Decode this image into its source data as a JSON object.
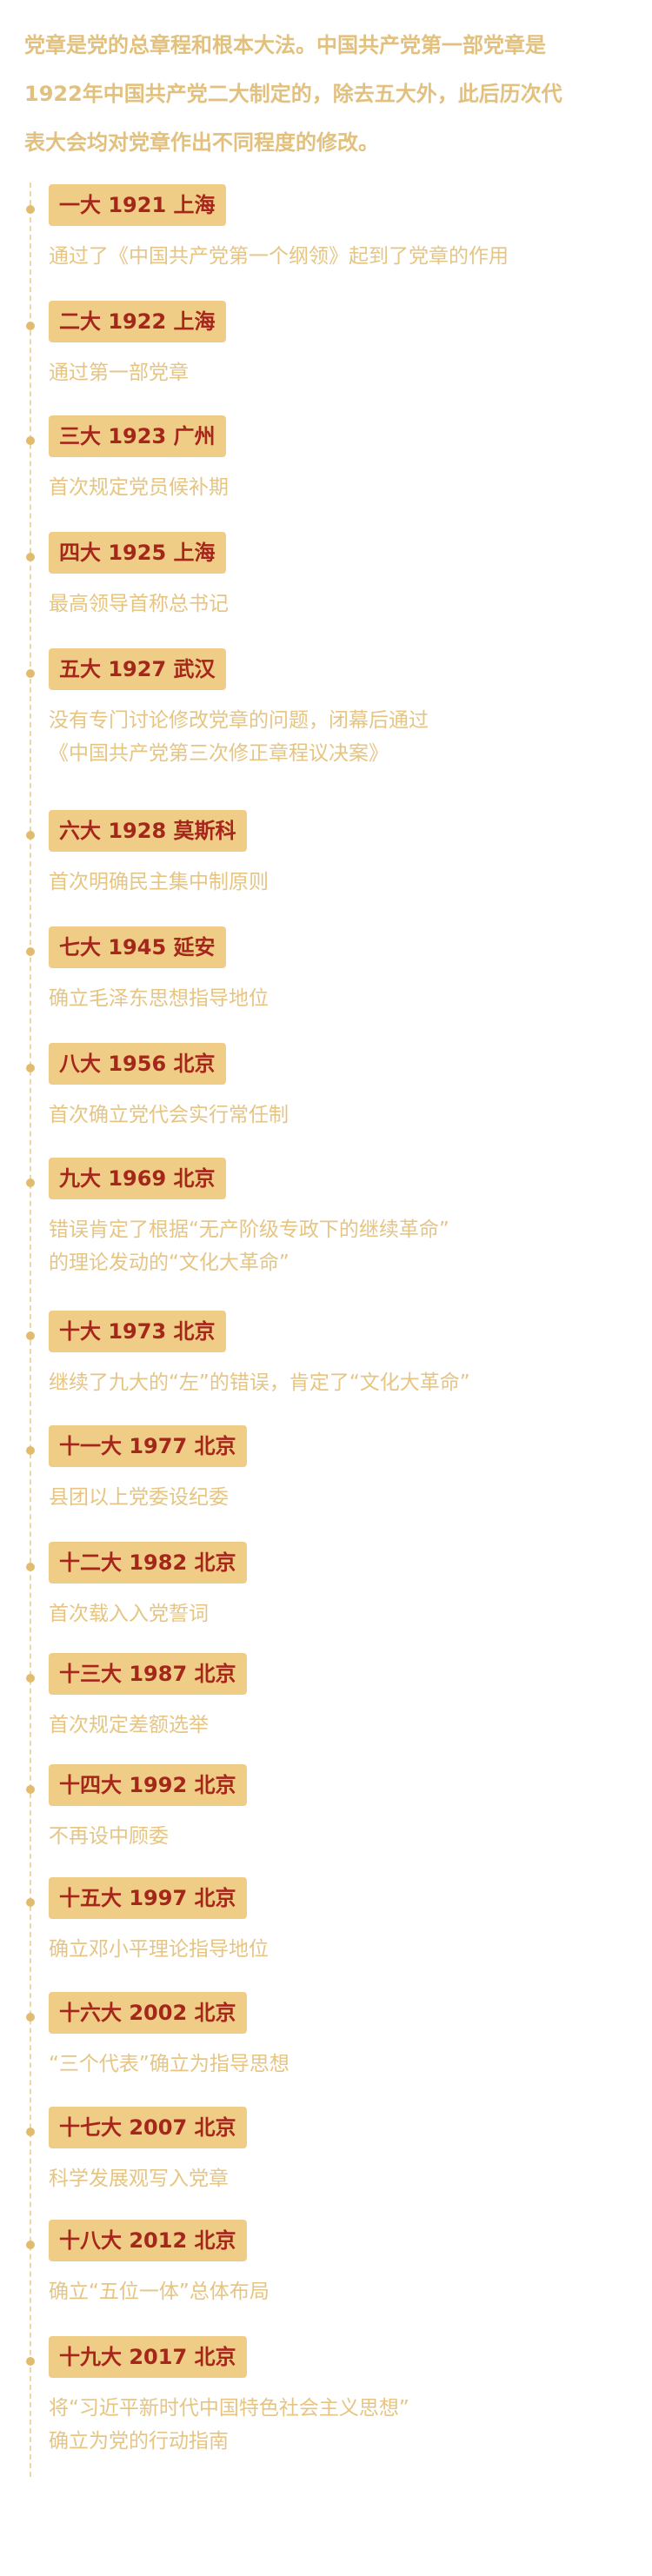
{
  "intro": {
    "line1": "党章是党的总章程和根本大法。中国共产党第一部党章是",
    "line2": "1922年中国共产党二大制定的，除去五大外，此后历次代",
    "line3": "表大会均对党章作出不同程度的修改。"
  },
  "congresses": [
    {
      "tag": "一大 1921 上海",
      "desc": [
        "通过了《中国共产党第一个纲领》起到了党章的作用"
      ]
    },
    {
      "tag": "二大 1922 上海",
      "desc": [
        "通过第一部党章"
      ]
    },
    {
      "tag": "三大 1923 广州",
      "desc": [
        "首次规定党员候补期"
      ]
    },
    {
      "tag": "四大 1925 上海",
      "desc": [
        "最高领导首称总书记"
      ]
    },
    {
      "tag": "五大 1927 武汉",
      "desc": [
        "没有专门讨论修改党章的问题，闭幕后通过",
        "《中国共产党第三次修正章程议决案》"
      ]
    },
    {
      "tag": "六大 1928 莫斯科",
      "desc": [
        "首次明确民主集中制原则"
      ]
    },
    {
      "tag": "七大 1945 延安",
      "desc": [
        "确立毛泽东思想指导地位"
      ]
    },
    {
      "tag": "八大 1956 北京",
      "desc": [
        "首次确立党代会实行常任制"
      ]
    },
    {
      "tag": "九大 1969 北京",
      "desc": [
        "错误肯定了根据“无产阶级专政下的继续革命”",
        "的理论发动的“文化大革命”"
      ]
    },
    {
      "tag": "十大 1973 北京",
      "desc": [
        "继续了九大的“左”的错误，肯定了“文化大革命”"
      ]
    },
    {
      "tag": "十一大 1977 北京",
      "desc": [
        "县团以上党委设纪委"
      ]
    },
    {
      "tag": "十二大 1982 北京",
      "desc": [
        "首次载入入党誓词"
      ]
    },
    {
      "tag": "十三大 1987 北京",
      "desc": [
        "首次规定差额选举"
      ]
    },
    {
      "tag": "十四大 1992 北京",
      "desc": [
        "不再设中顾委"
      ]
    },
    {
      "tag": "十五大 1997 北京",
      "desc": [
        "确立邓小平理论指导地位"
      ]
    },
    {
      "tag": "十六大 2002 北京",
      "desc": [
        "“三个代表”确立为指导思想"
      ]
    },
    {
      "tag": "十七大 2007 北京",
      "desc": [
        "科学发展观写入党章"
      ]
    },
    {
      "tag": "十八大 2012 北京",
      "desc": [
        "确立“五位一体”总体布局"
      ]
    },
    {
      "tag": "十九大 2017 北京",
      "desc": [
        "将“习近平新时代中国特色社会主义思想”",
        "确立为党的行动指南"
      ]
    }
  ],
  "colors": {
    "accent": "#f0cd86",
    "tag_text": "#a5261b",
    "body_text": "#e6c583",
    "line": "#efd6a2"
  }
}
